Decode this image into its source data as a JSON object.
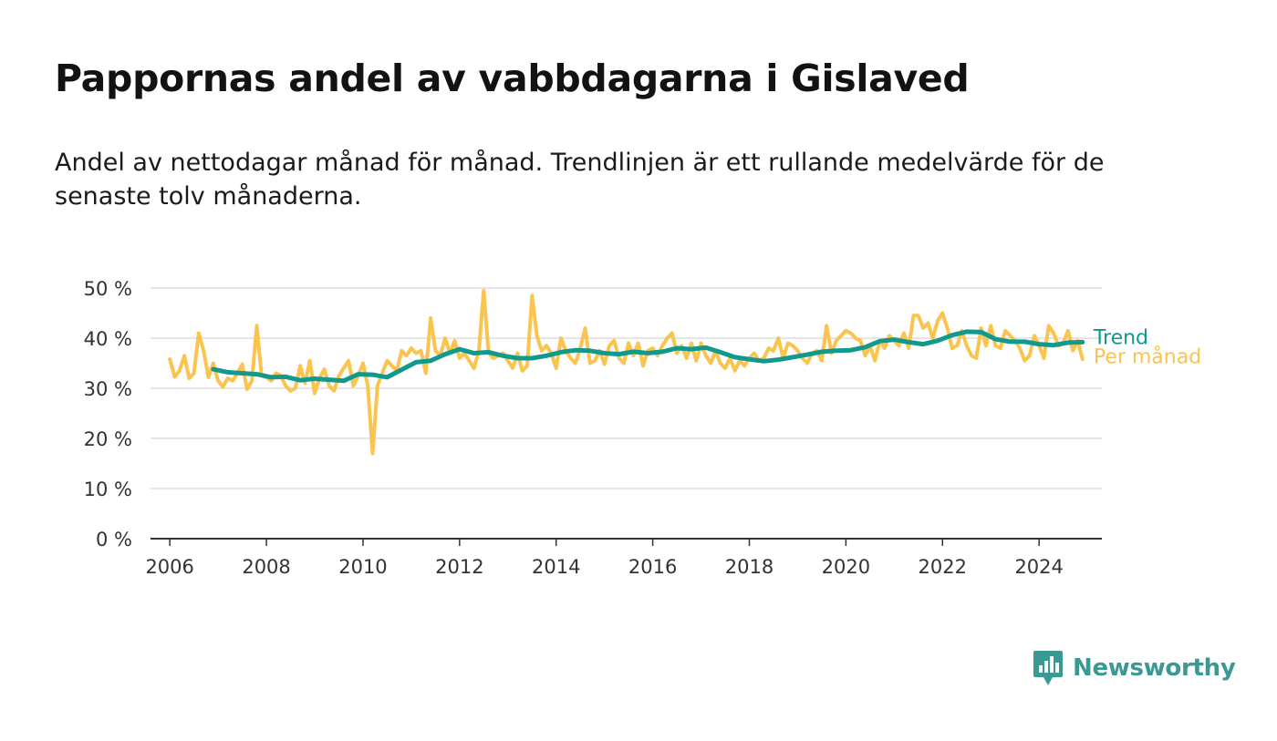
{
  "title": "Pappornas andel av vabbdagarna i Gislaved",
  "subtitle": "Andel av nettodagar månad för månad. Trendlinjen är ett rullande medelvärde för de senaste tolv månaderna.",
  "brand": {
    "name": "Newsworthy",
    "icon": "newsworthy-logo-icon"
  },
  "colors": {
    "monthly": "#fbc44f",
    "trend": "#12998e",
    "grid": "#dddddd",
    "axis": "#333333",
    "brand": "#3a9a93"
  },
  "chart_data": {
    "type": "line",
    "ylim": [
      0,
      50
    ],
    "yticks": [
      0,
      10,
      20,
      30,
      40,
      50
    ],
    "ytick_labels": [
      "0 %",
      "10 %",
      "20 %",
      "30 %",
      "40 %",
      "50 %"
    ],
    "xlim": [
      2005.6,
      2025.3
    ],
    "xticks": [
      2006,
      2008,
      2010,
      2012,
      2014,
      2016,
      2018,
      2020,
      2022,
      2024
    ],
    "xtick_labels": [
      "2006",
      "2008",
      "2010",
      "2012",
      "2014",
      "2016",
      "2018",
      "2020",
      "2022",
      "2024"
    ],
    "grid": true,
    "legend_placement": "right-end-of-lines",
    "series": [
      {
        "name": "Per månad",
        "color": "#fbc44f",
        "points": [
          [
            2006.0,
            35.8
          ],
          [
            2006.1,
            32.3
          ],
          [
            2006.2,
            33.5
          ],
          [
            2006.3,
            36.5
          ],
          [
            2006.4,
            32.0
          ],
          [
            2006.5,
            33.0
          ],
          [
            2006.6,
            41.0
          ],
          [
            2006.7,
            37.5
          ],
          [
            2006.8,
            32.2
          ],
          [
            2006.9,
            35.0
          ],
          [
            2007.0,
            31.5
          ],
          [
            2007.1,
            30.3
          ],
          [
            2007.2,
            32.0
          ],
          [
            2007.3,
            31.5
          ],
          [
            2007.4,
            33.0
          ],
          [
            2007.5,
            34.8
          ],
          [
            2007.6,
            29.8
          ],
          [
            2007.7,
            31.5
          ],
          [
            2007.8,
            42.5
          ],
          [
            2007.9,
            32.5
          ],
          [
            2008.0,
            32.2
          ],
          [
            2008.1,
            31.5
          ],
          [
            2008.2,
            33.0
          ],
          [
            2008.3,
            32.5
          ],
          [
            2008.4,
            30.5
          ],
          [
            2008.5,
            29.5
          ],
          [
            2008.6,
            30.0
          ],
          [
            2008.7,
            34.5
          ],
          [
            2008.8,
            31.0
          ],
          [
            2008.9,
            35.5
          ],
          [
            2009.0,
            29.0
          ],
          [
            2009.1,
            32.0
          ],
          [
            2009.2,
            33.8
          ],
          [
            2009.3,
            30.5
          ],
          [
            2009.4,
            29.5
          ],
          [
            2009.5,
            32.5
          ],
          [
            2009.6,
            34.0
          ],
          [
            2009.7,
            35.5
          ],
          [
            2009.8,
            30.5
          ],
          [
            2009.9,
            32.5
          ],
          [
            2010.0,
            35.0
          ],
          [
            2010.1,
            30.5
          ],
          [
            2010.2,
            17.0
          ],
          [
            2010.3,
            30.5
          ],
          [
            2010.4,
            33.0
          ],
          [
            2010.5,
            35.5
          ],
          [
            2010.6,
            34.5
          ],
          [
            2010.7,
            33.5
          ],
          [
            2010.8,
            37.5
          ],
          [
            2010.9,
            36.5
          ],
          [
            2011.0,
            38.0
          ],
          [
            2011.1,
            37.0
          ],
          [
            2011.2,
            37.5
          ],
          [
            2011.3,
            33.0
          ],
          [
            2011.4,
            44.0
          ],
          [
            2011.5,
            37.5
          ],
          [
            2011.6,
            36.5
          ],
          [
            2011.7,
            40.0
          ],
          [
            2011.8,
            37.0
          ],
          [
            2011.9,
            39.5
          ],
          [
            2012.0,
            36.0
          ],
          [
            2012.1,
            37.0
          ],
          [
            2012.2,
            35.5
          ],
          [
            2012.3,
            34.0
          ],
          [
            2012.4,
            37.5
          ],
          [
            2012.5,
            49.5
          ],
          [
            2012.6,
            37.0
          ],
          [
            2012.7,
            36.0
          ],
          [
            2012.8,
            36.5
          ],
          [
            2012.9,
            37.0
          ],
          [
            2013.0,
            35.5
          ],
          [
            2013.1,
            34.0
          ],
          [
            2013.2,
            37.0
          ],
          [
            2013.3,
            33.5
          ],
          [
            2013.4,
            34.5
          ],
          [
            2013.5,
            48.5
          ],
          [
            2013.6,
            40.5
          ],
          [
            2013.7,
            37.5
          ],
          [
            2013.8,
            38.5
          ],
          [
            2013.9,
            37.0
          ],
          [
            2014.0,
            34.0
          ],
          [
            2014.1,
            40.0
          ],
          [
            2014.2,
            37.5
          ],
          [
            2014.3,
            36.0
          ],
          [
            2014.4,
            35.0
          ],
          [
            2014.5,
            38.0
          ],
          [
            2014.6,
            42.0
          ],
          [
            2014.7,
            35.0
          ],
          [
            2014.8,
            35.5
          ],
          [
            2014.9,
            37.5
          ],
          [
            2015.0,
            34.8
          ],
          [
            2015.1,
            38.5
          ],
          [
            2015.2,
            39.5
          ],
          [
            2015.3,
            36.0
          ],
          [
            2015.4,
            35.0
          ],
          [
            2015.5,
            39.0
          ],
          [
            2015.6,
            36.5
          ],
          [
            2015.7,
            39.0
          ],
          [
            2015.8,
            34.5
          ],
          [
            2015.9,
            37.5
          ],
          [
            2016.0,
            38.0
          ],
          [
            2016.1,
            36.5
          ],
          [
            2016.2,
            38.5
          ],
          [
            2016.3,
            40.0
          ],
          [
            2016.4,
            41.0
          ],
          [
            2016.5,
            37.0
          ],
          [
            2016.6,
            38.5
          ],
          [
            2016.7,
            36.0
          ],
          [
            2016.8,
            39.0
          ],
          [
            2016.9,
            35.5
          ],
          [
            2017.0,
            39.0
          ],
          [
            2017.1,
            36.5
          ],
          [
            2017.2,
            35.0
          ],
          [
            2017.3,
            37.5
          ],
          [
            2017.4,
            35.0
          ],
          [
            2017.5,
            34.0
          ],
          [
            2017.6,
            36.0
          ],
          [
            2017.7,
            33.5
          ],
          [
            2017.8,
            35.5
          ],
          [
            2017.9,
            34.5
          ],
          [
            2018.0,
            36.0
          ],
          [
            2018.1,
            37.0
          ],
          [
            2018.2,
            35.5
          ],
          [
            2018.3,
            36.0
          ],
          [
            2018.4,
            38.0
          ],
          [
            2018.5,
            37.5
          ],
          [
            2018.6,
            40.0
          ],
          [
            2018.7,
            36.0
          ],
          [
            2018.8,
            39.0
          ],
          [
            2018.9,
            38.5
          ],
          [
            2019.0,
            37.5
          ],
          [
            2019.1,
            36.0
          ],
          [
            2019.2,
            35.0
          ],
          [
            2019.3,
            37.0
          ],
          [
            2019.4,
            37.5
          ],
          [
            2019.5,
            35.5
          ],
          [
            2019.6,
            42.5
          ],
          [
            2019.7,
            37.0
          ],
          [
            2019.8,
            39.5
          ],
          [
            2019.9,
            40.5
          ],
          [
            2020.0,
            41.5
          ],
          [
            2020.1,
            41.0
          ],
          [
            2020.2,
            40.0
          ],
          [
            2020.3,
            39.5
          ],
          [
            2020.4,
            36.5
          ],
          [
            2020.5,
            38.5
          ],
          [
            2020.6,
            35.5
          ],
          [
            2020.7,
            39.5
          ],
          [
            2020.8,
            38.0
          ],
          [
            2020.9,
            40.5
          ],
          [
            2021.0,
            39.5
          ],
          [
            2021.1,
            38.5
          ],
          [
            2021.2,
            41.0
          ],
          [
            2021.3,
            38.0
          ],
          [
            2021.4,
            44.5
          ],
          [
            2021.5,
            44.5
          ],
          [
            2021.6,
            42.0
          ],
          [
            2021.7,
            43.0
          ],
          [
            2021.8,
            40.0
          ],
          [
            2021.9,
            43.5
          ],
          [
            2022.0,
            45.0
          ],
          [
            2022.1,
            42.0
          ],
          [
            2022.2,
            38.0
          ],
          [
            2022.3,
            38.5
          ],
          [
            2022.4,
            41.5
          ],
          [
            2022.5,
            38.5
          ],
          [
            2022.6,
            36.5
          ],
          [
            2022.7,
            36.0
          ],
          [
            2022.8,
            42.0
          ],
          [
            2022.9,
            38.5
          ],
          [
            2023.0,
            42.5
          ],
          [
            2023.1,
            38.5
          ],
          [
            2023.2,
            38.0
          ],
          [
            2023.3,
            41.5
          ],
          [
            2023.4,
            40.5
          ],
          [
            2023.5,
            39.5
          ],
          [
            2023.6,
            38.0
          ],
          [
            2023.7,
            35.5
          ],
          [
            2023.8,
            36.5
          ],
          [
            2023.9,
            40.5
          ],
          [
            2024.0,
            38.5
          ],
          [
            2024.1,
            36.0
          ],
          [
            2024.2,
            42.5
          ],
          [
            2024.3,
            41.0
          ],
          [
            2024.4,
            38.5
          ],
          [
            2024.5,
            39.0
          ],
          [
            2024.6,
            41.5
          ],
          [
            2024.7,
            37.5
          ],
          [
            2024.8,
            39.5
          ],
          [
            2024.9,
            35.8
          ]
        ]
      },
      {
        "name": "Trend",
        "color": "#12998e",
        "points": [
          [
            2006.9,
            33.8
          ],
          [
            2007.2,
            33.2
          ],
          [
            2007.5,
            33.0
          ],
          [
            2007.8,
            32.8
          ],
          [
            2008.1,
            32.2
          ],
          [
            2008.4,
            32.3
          ],
          [
            2008.7,
            31.6
          ],
          [
            2009.0,
            31.9
          ],
          [
            2009.3,
            31.7
          ],
          [
            2009.6,
            31.5
          ],
          [
            2009.9,
            32.8
          ],
          [
            2010.2,
            32.7
          ],
          [
            2010.5,
            32.2
          ],
          [
            2010.8,
            33.7
          ],
          [
            2011.1,
            35.2
          ],
          [
            2011.4,
            35.5
          ],
          [
            2011.7,
            36.8
          ],
          [
            2012.0,
            37.8
          ],
          [
            2012.3,
            37.0
          ],
          [
            2012.6,
            37.2
          ],
          [
            2012.9,
            36.5
          ],
          [
            2013.2,
            36.0
          ],
          [
            2013.5,
            36.0
          ],
          [
            2013.8,
            36.5
          ],
          [
            2014.1,
            37.2
          ],
          [
            2014.4,
            37.6
          ],
          [
            2014.7,
            37.5
          ],
          [
            2015.0,
            37.0
          ],
          [
            2015.3,
            36.8
          ],
          [
            2015.6,
            37.3
          ],
          [
            2015.9,
            37.0
          ],
          [
            2016.2,
            37.3
          ],
          [
            2016.5,
            38.0
          ],
          [
            2016.8,
            37.8
          ],
          [
            2017.1,
            38.1
          ],
          [
            2017.4,
            37.2
          ],
          [
            2017.7,
            36.2
          ],
          [
            2018.0,
            35.8
          ],
          [
            2018.3,
            35.4
          ],
          [
            2018.6,
            35.7
          ],
          [
            2018.9,
            36.2
          ],
          [
            2019.2,
            36.7
          ],
          [
            2019.5,
            37.3
          ],
          [
            2019.8,
            37.5
          ],
          [
            2020.1,
            37.6
          ],
          [
            2020.4,
            38.2
          ],
          [
            2020.7,
            39.4
          ],
          [
            2021.0,
            39.7
          ],
          [
            2021.3,
            39.2
          ],
          [
            2021.6,
            38.8
          ],
          [
            2021.9,
            39.5
          ],
          [
            2022.2,
            40.6
          ],
          [
            2022.5,
            41.3
          ],
          [
            2022.8,
            41.2
          ],
          [
            2023.1,
            39.8
          ],
          [
            2023.4,
            39.3
          ],
          [
            2023.7,
            39.3
          ],
          [
            2024.0,
            38.8
          ],
          [
            2024.3,
            38.6
          ],
          [
            2024.6,
            39.1
          ],
          [
            2024.9,
            39.2
          ]
        ]
      }
    ]
  }
}
